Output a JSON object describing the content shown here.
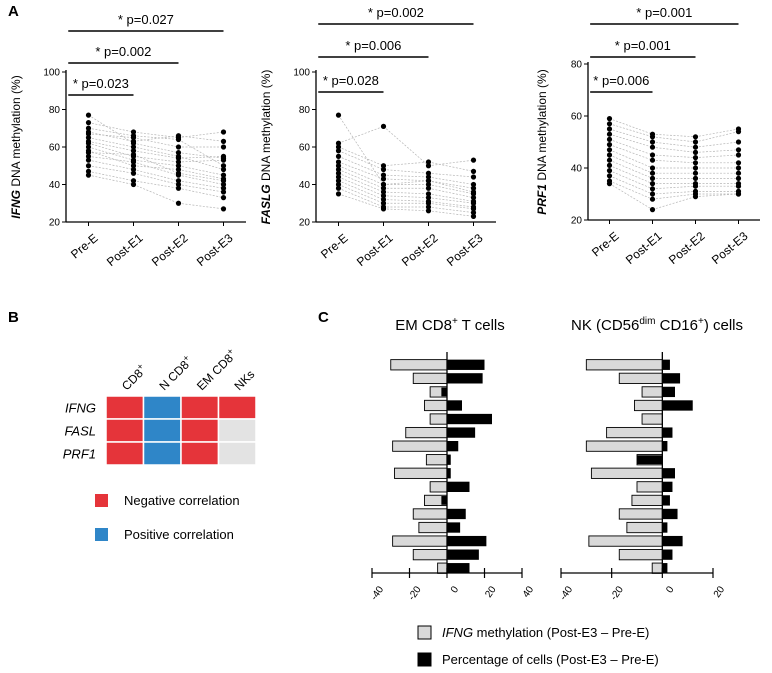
{
  "panels": {
    "a": "A",
    "b": "B",
    "c": "C"
  },
  "chart_data": [
    {
      "type": "scatter",
      "kind": "paired",
      "ylabel_gene": "IFNG",
      "ylabel_rest": " DNA methylation (%)",
      "categories": [
        "Pre-E",
        "Post-E1",
        "Post-E2",
        "Post-E3"
      ],
      "ylim": [
        20,
        100
      ],
      "yticks": [
        20,
        40,
        60,
        80,
        100
      ],
      "subjects": [
        [
          77,
          62,
          57,
          54
        ],
        [
          73,
          68,
          65,
          68
        ],
        [
          70,
          66,
          64,
          50
        ],
        [
          68,
          63,
          66,
          63
        ],
        [
          67,
          65,
          60,
          60
        ],
        [
          65,
          60,
          55,
          48
        ],
        [
          63,
          58,
          54,
          55
        ],
        [
          62,
          55,
          52,
          53
        ],
        [
          60,
          53,
          50,
          45
        ],
        [
          58,
          50,
          48,
          43
        ],
        [
          57,
          56,
          46,
          42
        ],
        [
          55,
          52,
          45,
          40
        ],
        [
          53,
          48,
          42,
          38
        ],
        [
          50,
          46,
          40,
          36
        ],
        [
          47,
          42,
          38,
          33
        ],
        [
          45,
          40,
          30,
          27
        ]
      ],
      "significance": [
        {
          "label": "* p=0.027",
          "from": 0,
          "to": 3
        },
        {
          "label": "* p=0.002",
          "from": 0,
          "to": 2
        },
        {
          "label": "* p=0.023",
          "from": 0,
          "to": 1
        }
      ]
    },
    {
      "type": "scatter",
      "kind": "paired",
      "ylabel_gene": "FASLG",
      "ylabel_rest": " DNA methylation (%)",
      "categories": [
        "Pre-E",
        "Post-E1",
        "Post-E2",
        "Post-E3"
      ],
      "ylim": [
        20,
        100
      ],
      "yticks": [
        20,
        40,
        60,
        80,
        100
      ],
      "subjects": [
        [
          77,
          40,
          42,
          36
        ],
        [
          62,
          71,
          50,
          53
        ],
        [
          60,
          50,
          52,
          47
        ],
        [
          58,
          48,
          46,
          44
        ],
        [
          55,
          45,
          44,
          40
        ],
        [
          52,
          43,
          42,
          38
        ],
        [
          50,
          40,
          40,
          35
        ],
        [
          48,
          38,
          38,
          33
        ],
        [
          46,
          36,
          35,
          31
        ],
        [
          44,
          34,
          33,
          30
        ],
        [
          42,
          32,
          31,
          28
        ],
        [
          40,
          30,
          30,
          27
        ],
        [
          38,
          28,
          28,
          25
        ],
        [
          35,
          27,
          26,
          23
        ]
      ],
      "significance": [
        {
          "label": "* p=0.002",
          "from": 0,
          "to": 3
        },
        {
          "label": "* p=0.006",
          "from": 0,
          "to": 2
        },
        {
          "label": "* p=0.028",
          "from": 0,
          "to": 1
        }
      ]
    },
    {
      "type": "scatter",
      "kind": "paired",
      "ylabel_gene": "PRF1",
      "ylabel_rest": " DNA methylation (%)",
      "categories": [
        "Pre-E",
        "Post-E1",
        "Post-E2",
        "Post-E3"
      ],
      "ylim": [
        20,
        80
      ],
      "yticks": [
        20,
        40,
        60,
        80
      ],
      "subjects": [
        [
          59,
          53,
          52,
          55
        ],
        [
          57,
          52,
          50,
          54
        ],
        [
          55,
          50,
          48,
          50
        ],
        [
          53,
          48,
          46,
          47
        ],
        [
          51,
          45,
          44,
          45
        ],
        [
          49,
          43,
          42,
          42
        ],
        [
          47,
          40,
          40,
          40
        ],
        [
          45,
          38,
          38,
          38
        ],
        [
          43,
          36,
          36,
          36
        ],
        [
          41,
          34,
          34,
          34
        ],
        [
          39,
          32,
          33,
          33
        ],
        [
          37,
          30,
          31,
          31
        ],
        [
          35,
          28,
          30,
          30
        ],
        [
          34,
          24,
          29,
          30
        ]
      ],
      "significance": [
        {
          "label": "* p=0.001",
          "from": 0,
          "to": 3
        },
        {
          "label": "* p=0.001",
          "from": 0,
          "to": 2
        },
        {
          "label": "* p=0.006",
          "from": 0,
          "to": 1
        }
      ]
    },
    {
      "type": "heatmap",
      "columns": [
        {
          "base": "CD8",
          "sup": "+"
        },
        {
          "base": "N CD8",
          "sup": "+"
        },
        {
          "base": "EM CD8",
          "sup": "+"
        },
        {
          "base": "NKs",
          "sup": ""
        }
      ],
      "rows": [
        "IFNG",
        "FASL",
        "PRF1"
      ],
      "cells": [
        [
          "negative",
          "positive",
          "negative",
          "negative"
        ],
        [
          "negative",
          "positive",
          "negative",
          "none"
        ],
        [
          "negative",
          "positive",
          "negative",
          "none"
        ]
      ],
      "legend": [
        {
          "key": "negative",
          "label": "Negative correlation",
          "color": "#e5343a"
        },
        {
          "key": "positive",
          "label": "Positive correlation",
          "color": "#2f86c8"
        }
      ],
      "none_color": "#e3e3e3"
    },
    {
      "type": "bar",
      "orientation": "horizontal",
      "title": "EM CD8",
      "title_sup": "+",
      "title_rest": " T cells",
      "xlim": [
        -40,
        40
      ],
      "xticks": [
        -40,
        -20,
        0,
        20,
        40
      ],
      "series": [
        {
          "name": "IFNG methylation (Post-E3 – Pre-E)",
          "color": "#d9d9d9",
          "values": [
            -30,
            -18,
            -9,
            -12,
            -9,
            -22,
            -29,
            -11,
            -28,
            -9,
            -12,
            -18,
            -15,
            -29,
            -18,
            -5
          ]
        },
        {
          "name": "Percentage of cells (Post-E3 – Pre-E)",
          "color": "#000000",
          "values": [
            20,
            19,
            -3,
            8,
            24,
            15,
            6,
            2,
            2,
            12,
            -3,
            10,
            7,
            21,
            17,
            12
          ]
        }
      ]
    },
    {
      "type": "bar",
      "orientation": "horizontal",
      "title": "NK (CD56",
      "title_sup": "dim",
      "title_rest": " CD16",
      "title_sup2": "+",
      "title_rest2": ") cells",
      "xlim": [
        -40,
        20
      ],
      "xticks": [
        -40,
        -20,
        0,
        20
      ],
      "series": [
        {
          "name": "IFNG methylation (Post-E3 – Pre-E)",
          "color": "#d9d9d9",
          "values": [
            -30,
            -17,
            -8,
            -11,
            -8,
            -22,
            -30,
            -10,
            -28,
            -10,
            -12,
            -17,
            -14,
            -29,
            -17,
            -4
          ]
        },
        {
          "name": "Percentage of cells (Post-E3 – Pre-E)",
          "color": "#000000",
          "values": [
            3,
            7,
            5,
            12,
            0,
            4,
            2,
            -10,
            5,
            4,
            3,
            6,
            2,
            8,
            4,
            2
          ]
        }
      ]
    }
  ],
  "legend_c": [
    {
      "italic": "IFNG",
      "text": " methylation (Post-E3 – Pre-E)",
      "color": "#d9d9d9"
    },
    {
      "italic": "",
      "text": "Percentage of cells (Post-E3 – Pre-E)",
      "color": "#000000"
    }
  ]
}
